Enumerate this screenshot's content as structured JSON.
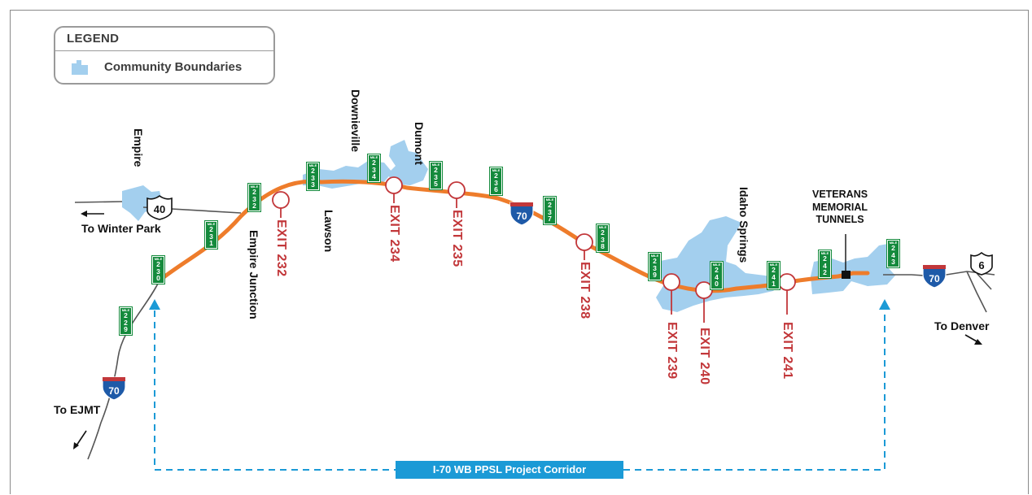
{
  "legend": {
    "title": "LEGEND",
    "item_label": "Community Boundaries"
  },
  "corridor": {
    "label": "I-70 WB PPSL Project Corridor"
  },
  "directions": {
    "winter_park": "To Winter Park",
    "ejmt": "To EJMT",
    "denver": "To Denver"
  },
  "communities": {
    "empire": "Empire",
    "downieville": "Downieville",
    "dumont": "Dumont",
    "lawson": "Lawson",
    "empire_junction": "Empire Junction",
    "idaho_springs": "Idaho Springs"
  },
  "tunnels": {
    "line1": "VETERANS",
    "line2": "MEMORIAL",
    "line3": "TUNNELS"
  },
  "exits": [
    "EXIT 232",
    "EXIT 234",
    "EXIT 235",
    "EXIT 238",
    "EXIT 239",
    "EXIT 240",
    "EXIT 241"
  ],
  "mile_marker_word": "MILE",
  "mile_markers": [
    "229",
    "230",
    "231",
    "232",
    "233",
    "234",
    "235",
    "236",
    "237",
    "238",
    "239",
    "240",
    "241",
    "242",
    "243"
  ],
  "shields": {
    "us40": "40",
    "i70": "70",
    "us6": "6"
  },
  "colors": {
    "highway": "#ee7c2b",
    "community": "#a3cfee",
    "exit": "#c2373a",
    "corridor": "#1b9ad6",
    "mile_marker": "#148a3c",
    "interstate_shield": "#1e5aa8"
  }
}
